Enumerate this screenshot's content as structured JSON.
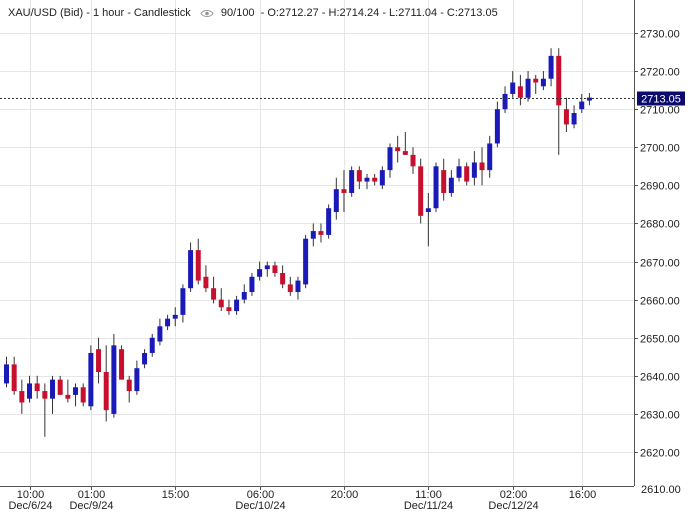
{
  "header": {
    "symbol": "XAU/USD (Bid) - 1 hour - Candlestick",
    "visibility_icon": "eye-icon",
    "bars": "90/100",
    "ohlc": "- O:2712.27 - H:2714.24 - L:2711.04 - C:2713.05"
  },
  "price_tag": "2713.05",
  "colors": {
    "up": "#1a1ab8",
    "down": "#c8102e",
    "grid": "#e6e6e6",
    "axis_text": "#222222",
    "price_line": "#333333"
  },
  "chart_data": {
    "type": "candlestick",
    "ylim": [
      2610,
      2735
    ],
    "y_ticks": [
      "2620.00",
      "2630.00",
      "2640.00",
      "2650.00",
      "2660.00",
      "2670.00",
      "2680.00",
      "2690.00",
      "2700.00",
      "2710.00",
      "2720.00",
      "2730.00"
    ],
    "y_bottom_label": "2610.00",
    "current_price": 2713.05,
    "x_ticks": [
      {
        "index": 3,
        "time": "10:00",
        "date": "Dec/6/24"
      },
      {
        "index": 11,
        "time": "01:00",
        "date": "Dec/9/24"
      },
      {
        "index": 22,
        "time": "15:00",
        "date": ""
      },
      {
        "index": 33,
        "time": "06:00",
        "date": "Dec/10/24"
      },
      {
        "index": 44,
        "time": "20:00",
        "date": ""
      },
      {
        "index": 55,
        "time": "11:00",
        "date": "Dec/11/24"
      },
      {
        "index": 66,
        "time": "02:00",
        "date": "Dec/12/24"
      },
      {
        "index": 75,
        "time": "16:00",
        "date": ""
      }
    ],
    "candles": [
      {
        "o": 2638,
        "h": 2645,
        "l": 2637,
        "c": 2643
      },
      {
        "o": 2643,
        "h": 2645,
        "l": 2635,
        "c": 2636
      },
      {
        "o": 2636,
        "h": 2639,
        "l": 2630,
        "c": 2633
      },
      {
        "o": 2634,
        "h": 2640,
        "l": 2633,
        "c": 2638
      },
      {
        "o": 2638,
        "h": 2640,
        "l": 2634,
        "c": 2636
      },
      {
        "o": 2636,
        "h": 2638,
        "l": 2624,
        "c": 2634
      },
      {
        "o": 2634,
        "h": 2640,
        "l": 2630,
        "c": 2639
      },
      {
        "o": 2639,
        "h": 2640,
        "l": 2635,
        "c": 2635
      },
      {
        "o": 2635,
        "h": 2639,
        "l": 2633,
        "c": 2634
      },
      {
        "o": 2635,
        "h": 2638,
        "l": 2632,
        "c": 2637
      },
      {
        "o": 2637,
        "h": 2638,
        "l": 2632,
        "c": 2633
      },
      {
        "o": 2632,
        "h": 2648,
        "l": 2631,
        "c": 2646
      },
      {
        "o": 2647,
        "h": 2650,
        "l": 2638,
        "c": 2641
      },
      {
        "o": 2641,
        "h": 2648,
        "l": 2628,
        "c": 2631
      },
      {
        "o": 2630,
        "h": 2651,
        "l": 2629,
        "c": 2648
      },
      {
        "o": 2647,
        "h": 2648,
        "l": 2639,
        "c": 2639
      },
      {
        "o": 2639,
        "h": 2640,
        "l": 2633,
        "c": 2636
      },
      {
        "o": 2636,
        "h": 2644,
        "l": 2635,
        "c": 2642
      },
      {
        "o": 2643,
        "h": 2647,
        "l": 2642,
        "c": 2646
      },
      {
        "o": 2646,
        "h": 2651,
        "l": 2645,
        "c": 2650
      },
      {
        "o": 2649,
        "h": 2655,
        "l": 2648,
        "c": 2653
      },
      {
        "o": 2653,
        "h": 2656,
        "l": 2652,
        "c": 2655
      },
      {
        "o": 2655,
        "h": 2658,
        "l": 2653,
        "c": 2656
      },
      {
        "o": 2656,
        "h": 2664,
        "l": 2654,
        "c": 2663
      },
      {
        "o": 2663,
        "h": 2675,
        "l": 2662,
        "c": 2673
      },
      {
        "o": 2673,
        "h": 2676,
        "l": 2664,
        "c": 2665
      },
      {
        "o": 2666,
        "h": 2669,
        "l": 2662,
        "c": 2663
      },
      {
        "o": 2663,
        "h": 2666,
        "l": 2659,
        "c": 2660
      },
      {
        "o": 2660,
        "h": 2663,
        "l": 2657,
        "c": 2658
      },
      {
        "o": 2658,
        "h": 2660,
        "l": 2656,
        "c": 2657
      },
      {
        "o": 2657,
        "h": 2661,
        "l": 2656,
        "c": 2660
      },
      {
        "o": 2660,
        "h": 2664,
        "l": 2659,
        "c": 2662
      },
      {
        "o": 2662,
        "h": 2667,
        "l": 2661,
        "c": 2666
      },
      {
        "o": 2666,
        "h": 2670,
        "l": 2665,
        "c": 2668
      },
      {
        "o": 2668,
        "h": 2670,
        "l": 2666,
        "c": 2669
      },
      {
        "o": 2669,
        "h": 2670,
        "l": 2666,
        "c": 2667
      },
      {
        "o": 2667,
        "h": 2669,
        "l": 2663,
        "c": 2664
      },
      {
        "o": 2664,
        "h": 2666,
        "l": 2661,
        "c": 2662
      },
      {
        "o": 2662,
        "h": 2666,
        "l": 2660,
        "c": 2665
      },
      {
        "o": 2664,
        "h": 2677,
        "l": 2663,
        "c": 2676
      },
      {
        "o": 2676,
        "h": 2680,
        "l": 2674,
        "c": 2678
      },
      {
        "o": 2678,
        "h": 2680,
        "l": 2675,
        "c": 2677
      },
      {
        "o": 2677,
        "h": 2685,
        "l": 2676,
        "c": 2684
      },
      {
        "o": 2683,
        "h": 2692,
        "l": 2681,
        "c": 2689
      },
      {
        "o": 2689,
        "h": 2694,
        "l": 2683,
        "c": 2688
      },
      {
        "o": 2688,
        "h": 2695,
        "l": 2687,
        "c": 2694
      },
      {
        "o": 2694,
        "h": 2695,
        "l": 2689,
        "c": 2691
      },
      {
        "o": 2691,
        "h": 2693,
        "l": 2689,
        "c": 2692
      },
      {
        "o": 2692,
        "h": 2693,
        "l": 2690,
        "c": 2691
      },
      {
        "o": 2690,
        "h": 2695,
        "l": 2689,
        "c": 2694
      },
      {
        "o": 2694,
        "h": 2701,
        "l": 2692,
        "c": 2700
      },
      {
        "o": 2700,
        "h": 2703,
        "l": 2696,
        "c": 2699
      },
      {
        "o": 2699,
        "h": 2704,
        "l": 2698,
        "c": 2698
      },
      {
        "o": 2698,
        "h": 2700,
        "l": 2693,
        "c": 2695
      },
      {
        "o": 2695,
        "h": 2697,
        "l": 2680,
        "c": 2682
      },
      {
        "o": 2683,
        "h": 2688,
        "l": 2674,
        "c": 2684
      },
      {
        "o": 2684,
        "h": 2696,
        "l": 2683,
        "c": 2695
      },
      {
        "o": 2694,
        "h": 2697,
        "l": 2686,
        "c": 2688
      },
      {
        "o": 2688,
        "h": 2694,
        "l": 2687,
        "c": 2692
      },
      {
        "o": 2692,
        "h": 2697,
        "l": 2691,
        "c": 2695
      },
      {
        "o": 2695,
        "h": 2696,
        "l": 2690,
        "c": 2691
      },
      {
        "o": 2692,
        "h": 2699,
        "l": 2690,
        "c": 2696
      },
      {
        "o": 2696,
        "h": 2700,
        "l": 2690,
        "c": 2694
      },
      {
        "o": 2694,
        "h": 2703,
        "l": 2692,
        "c": 2701
      },
      {
        "o": 2701,
        "h": 2712,
        "l": 2700,
        "c": 2710
      },
      {
        "o": 2710,
        "h": 2716,
        "l": 2709,
        "c": 2714
      },
      {
        "o": 2714,
        "h": 2720,
        "l": 2713,
        "c": 2717
      },
      {
        "o": 2716,
        "h": 2719,
        "l": 2711,
        "c": 2713
      },
      {
        "o": 2713,
        "h": 2720,
        "l": 2712,
        "c": 2718
      },
      {
        "o": 2718,
        "h": 2719,
        "l": 2714,
        "c": 2717
      },
      {
        "o": 2716,
        "h": 2720,
        "l": 2715,
        "c": 2718
      },
      {
        "o": 2718,
        "h": 2726,
        "l": 2716,
        "c": 2724
      },
      {
        "o": 2724,
        "h": 2726,
        "l": 2698,
        "c": 2711
      },
      {
        "o": 2710,
        "h": 2713,
        "l": 2704,
        "c": 2706
      },
      {
        "o": 2706,
        "h": 2711,
        "l": 2705,
        "c": 2709
      },
      {
        "o": 2710,
        "h": 2714,
        "l": 2709,
        "c": 2712
      },
      {
        "o": 2712.27,
        "h": 2714.24,
        "l": 2711.04,
        "c": 2713.05
      }
    ]
  }
}
